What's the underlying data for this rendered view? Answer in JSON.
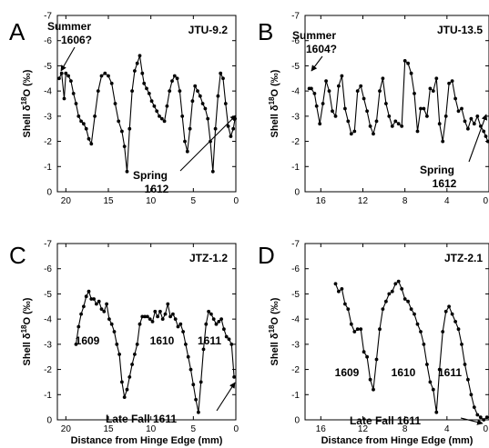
{
  "figure": {
    "ylabel": "Shell δ18O (‰)",
    "xlabel": "Distance from Hinge Edge (mm)"
  },
  "chart_data": [
    {
      "type": "line",
      "panel_label": "A",
      "sample": "JTU-9.2",
      "ylabel": "Shell δ18O (‰)",
      "xlabel": "",
      "xlim": [
        21,
        0
      ],
      "ylim": [
        0,
        -7
      ],
      "x_ticks": [
        20,
        15,
        10,
        5,
        0
      ],
      "y_ticks": [
        -7,
        -6,
        -5,
        -4,
        -3,
        -2,
        -1,
        0
      ],
      "annotations": [
        "Summer",
        "1606?",
        "Spring",
        "1612"
      ],
      "series": [
        {
          "x": [
            20.8,
            20.5,
            20.2,
            20.0,
            19.7,
            19.4,
            19.1,
            18.8,
            18.5,
            18.2,
            17.9,
            17.6,
            17.3,
            17.0,
            16.6,
            16.2,
            15.8,
            15.4,
            15.0,
            14.6,
            14.2,
            13.8,
            13.4,
            13.1,
            12.8,
            12.5,
            12.2,
            11.9,
            11.6,
            11.3,
            11.0,
            10.8,
            10.5,
            10.2,
            9.9,
            9.6,
            9.3,
            9.0,
            8.7,
            8.4,
            8.1,
            7.8,
            7.5,
            7.2,
            6.9,
            6.6,
            6.3,
            6.0,
            5.7,
            5.4,
            5.1,
            4.8,
            4.5,
            4.2,
            3.9,
            3.6,
            3.3,
            3.0,
            2.7,
            2.4,
            2.1,
            1.8,
            1.5,
            1.2,
            0.9,
            0.6,
            0.3,
            0.1
          ],
          "y": [
            -4.5,
            -4.7,
            -3.7,
            -4.7,
            -4.6,
            -4.4,
            -3.9,
            -3.5,
            -3.0,
            -2.8,
            -2.7,
            -2.5,
            -2.1,
            -1.9,
            -3.0,
            -4.0,
            -4.6,
            -4.7,
            -4.6,
            -4.3,
            -3.5,
            -2.8,
            -2.4,
            -1.8,
            -0.8,
            -2.5,
            -4.0,
            -4.8,
            -5.1,
            -5.4,
            -4.7,
            -4.3,
            -4.1,
            -3.9,
            -3.6,
            -3.4,
            -3.2,
            -3.0,
            -2.9,
            -2.8,
            -3.4,
            -4.0,
            -4.4,
            -4.6,
            -4.5,
            -4.0,
            -3.0,
            -2.0,
            -1.6,
            -2.5,
            -3.6,
            -4.2,
            -4.0,
            -3.8,
            -3.5,
            -3.3,
            -2.9,
            -2.0,
            -0.8,
            -2.5,
            -3.8,
            -4.7,
            -4.5,
            -3.5,
            -2.6,
            -2.2,
            -2.5,
            -2.9
          ]
        }
      ]
    },
    {
      "type": "line",
      "panel_label": "B",
      "sample": "JTU-13.5",
      "ylabel": "Shell δ18O (‰)",
      "xlabel": "",
      "xlim": [
        17.5,
        0
      ],
      "ylim": [
        0,
        -7
      ],
      "x_ticks": [
        16,
        12,
        8,
        4,
        0
      ],
      "y_ticks": [
        -7,
        -6,
        -5,
        -4,
        -3,
        -2,
        -1,
        0
      ],
      "annotations": [
        "Summer",
        "1604?",
        "Spring",
        "1612"
      ],
      "series": [
        {
          "x": [
            17.1,
            16.9,
            16.6,
            16.4,
            16.1,
            15.8,
            15.5,
            15.2,
            14.9,
            14.6,
            14.3,
            14.0,
            13.7,
            13.4,
            13.1,
            12.8,
            12.5,
            12.2,
            11.9,
            11.6,
            11.3,
            11.0,
            10.7,
            10.4,
            10.1,
            9.8,
            9.5,
            9.2,
            8.9,
            8.6,
            8.3,
            8.0,
            7.7,
            7.4,
            7.1,
            6.8,
            6.5,
            6.2,
            5.9,
            5.6,
            5.3,
            5.0,
            4.7,
            4.4,
            4.1,
            3.8,
            3.5,
            3.2,
            2.9,
            2.6,
            2.3,
            2.0,
            1.7,
            1.4,
            1.1,
            0.8,
            0.5,
            0.3,
            0.1
          ],
          "y": [
            -4.1,
            -4.1,
            -3.9,
            -3.4,
            -2.7,
            -3.5,
            -4.4,
            -4.0,
            -3.2,
            -3.0,
            -4.2,
            -4.6,
            -3.3,
            -2.8,
            -2.3,
            -2.4,
            -4.0,
            -4.2,
            -3.7,
            -3.2,
            -2.6,
            -2.3,
            -2.8,
            -4.0,
            -4.5,
            -3.5,
            -3.0,
            -2.6,
            -2.8,
            -2.7,
            -2.6,
            -5.2,
            -5.1,
            -4.7,
            -3.9,
            -2.4,
            -3.3,
            -3.3,
            -3.0,
            -4.1,
            -4.0,
            -4.5,
            -2.7,
            -2.0,
            -3.0,
            -4.3,
            -4.4,
            -3.7,
            -3.2,
            -3.3,
            -2.8,
            -2.5,
            -2.9,
            -2.7,
            -3.0,
            -2.6,
            -2.4,
            -2.2,
            -2.0
          ]
        }
      ]
    },
    {
      "type": "line",
      "panel_label": "C",
      "sample": "JTZ-1.2",
      "ylabel": "Shell δ18O (‰)",
      "xlabel": "Distance from Hinge Edge (mm)",
      "xlim": [
        21,
        0
      ],
      "ylim": [
        0,
        -7
      ],
      "x_ticks": [
        20,
        15,
        10,
        5,
        0
      ],
      "y_ticks": [
        -7,
        -6,
        -5,
        -4,
        -3,
        -2,
        -1,
        0
      ],
      "annotations": [
        "1609",
        "1610",
        "1611",
        "Late Fall 1611"
      ],
      "series": [
        {
          "x": [
            18.8,
            18.5,
            18.2,
            17.9,
            17.6,
            17.3,
            17.0,
            16.7,
            16.4,
            16.1,
            15.8,
            15.5,
            15.2,
            14.9,
            14.6,
            14.3,
            14.0,
            13.7,
            13.4,
            13.1,
            12.8,
            12.5,
            12.2,
            11.9,
            11.6,
            11.3,
            11.0,
            10.7,
            10.4,
            10.1,
            9.8,
            9.5,
            9.2,
            8.9,
            8.6,
            8.3,
            8.0,
            7.7,
            7.4,
            7.1,
            6.8,
            6.5,
            6.2,
            5.9,
            5.6,
            5.3,
            5.0,
            4.7,
            4.4,
            4.1,
            3.8,
            3.5,
            3.2,
            2.9,
            2.6,
            2.3,
            2.0,
            1.7,
            1.4,
            1.1,
            0.8,
            0.5,
            0.2
          ],
          "y": [
            -3.0,
            -3.7,
            -4.2,
            -4.5,
            -4.9,
            -5.1,
            -4.8,
            -4.8,
            -4.6,
            -4.7,
            -4.4,
            -4.3,
            -4.6,
            -4.0,
            -3.8,
            -3.5,
            -3.0,
            -2.6,
            -1.5,
            -0.9,
            -1.2,
            -1.7,
            -2.2,
            -2.6,
            -3.0,
            -3.8,
            -4.1,
            -4.1,
            -4.1,
            -4.0,
            -3.9,
            -4.3,
            -4.1,
            -4.3,
            -4.0,
            -4.2,
            -4.6,
            -4.1,
            -4.2,
            -4.0,
            -3.7,
            -3.8,
            -3.5,
            -3.0,
            -2.5,
            -2.0,
            -1.4,
            -0.8,
            -0.3,
            -1.5,
            -2.8,
            -3.8,
            -4.3,
            -4.2,
            -4.0,
            -3.8,
            -3.9,
            -4.0,
            -3.6,
            -3.3,
            -3.2,
            -3.0,
            -1.7
          ]
        }
      ]
    },
    {
      "type": "line",
      "panel_label": "D",
      "sample": "JTZ-2.1",
      "ylabel": "Shell δ18O (‰)",
      "xlabel": "Distance from Hinge Edge (mm)",
      "xlim": [
        17.5,
        0
      ],
      "ylim": [
        0,
        -7
      ],
      "x_ticks": [
        16,
        12,
        8,
        4,
        0
      ],
      "y_ticks": [
        -7,
        -6,
        -5,
        -4,
        -3,
        -2,
        -1,
        0
      ],
      "annotations": [
        "1609",
        "1610",
        "1611",
        "Late Fall 1611"
      ],
      "series": [
        {
          "x": [
            14.6,
            14.3,
            14.0,
            13.7,
            13.4,
            13.1,
            12.8,
            12.5,
            12.2,
            11.9,
            11.6,
            11.3,
            11.0,
            10.7,
            10.4,
            10.1,
            9.8,
            9.5,
            9.2,
            8.9,
            8.6,
            8.3,
            8.0,
            7.7,
            7.4,
            7.1,
            6.8,
            6.5,
            6.2,
            5.9,
            5.6,
            5.3,
            5.0,
            4.7,
            4.4,
            4.1,
            3.8,
            3.5,
            3.2,
            2.9,
            2.6,
            2.3,
            2.0,
            1.7,
            1.4,
            1.1,
            0.8,
            0.5,
            0.2
          ],
          "y": [
            -5.4,
            -5.1,
            -5.2,
            -4.6,
            -4.4,
            -3.8,
            -3.5,
            -3.6,
            -3.6,
            -2.7,
            -2.5,
            -1.6,
            -1.2,
            -2.4,
            -3.6,
            -4.4,
            -4.7,
            -5.0,
            -5.1,
            -5.4,
            -5.5,
            -5.2,
            -4.8,
            -4.7,
            -4.4,
            -4.2,
            -3.8,
            -3.5,
            -3.0,
            -2.2,
            -1.5,
            -1.2,
            -0.3,
            -2.0,
            -3.5,
            -4.3,
            -4.5,
            -4.2,
            -3.9,
            -3.6,
            -3.0,
            -2.2,
            -1.6,
            -1.0,
            -0.5,
            -0.2,
            -0.1,
            0.0,
            -0.1
          ]
        }
      ]
    }
  ]
}
